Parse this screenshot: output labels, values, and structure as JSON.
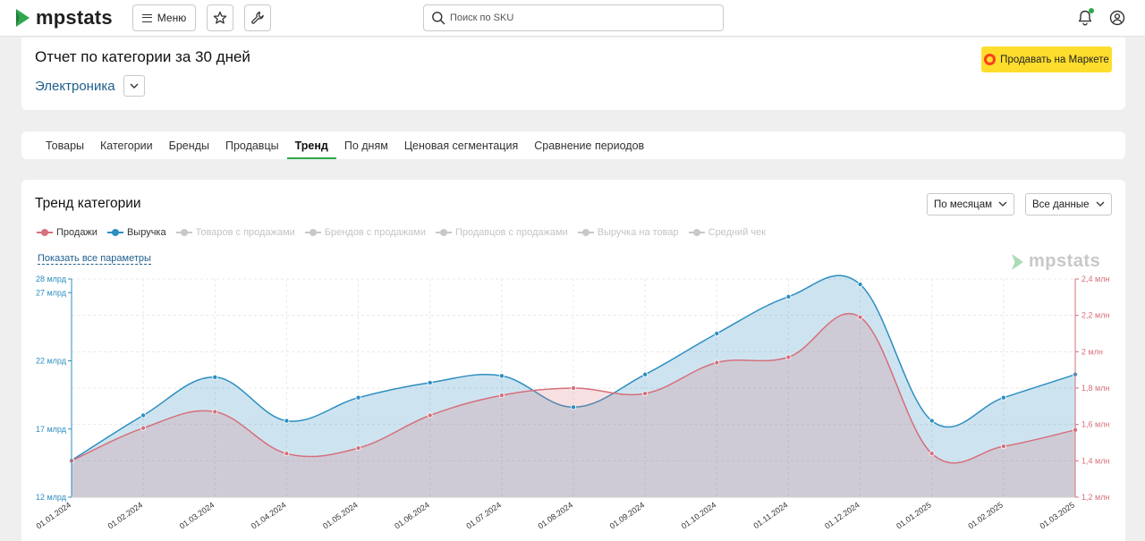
{
  "app": {
    "logo_text": "mpstats",
    "menu_label": "Меню",
    "search_placeholder": "Поиск по SKU"
  },
  "header": {
    "title": "Отчет по категории за 30 дней",
    "category": "Электроника",
    "sell_button": "Продавать на Маркете"
  },
  "tabs": [
    {
      "label": "Товары",
      "active": false
    },
    {
      "label": "Категории",
      "active": false
    },
    {
      "label": "Бренды",
      "active": false
    },
    {
      "label": "Продавцы",
      "active": false
    },
    {
      "label": "Тренд",
      "active": true
    },
    {
      "label": "По дням",
      "active": false
    },
    {
      "label": "Ценовая сегментация",
      "active": false
    },
    {
      "label": "Сравнение периодов",
      "active": false
    }
  ],
  "chart_card": {
    "title": "Тренд категории",
    "period_select": "По месяцам",
    "data_select": "Все данные",
    "show_all_link": "Показать все параметры",
    "watermark": "mpstats",
    "legend": [
      {
        "label": "Продажи",
        "active": true,
        "color": "#d5707c"
      },
      {
        "label": "Выручка",
        "active": true,
        "color": "#2d8ec0"
      },
      {
        "label": "Товаров с продажами",
        "active": false,
        "color": "#c8c8c8"
      },
      {
        "label": "Брендов с продажами",
        "active": false,
        "color": "#c8c8c8"
      },
      {
        "label": "Продавцов с продажами",
        "active": false,
        "color": "#c8c8c8"
      },
      {
        "label": "Выручка на товар",
        "active": false,
        "color": "#c8c8c8"
      },
      {
        "label": "Средний чек",
        "active": false,
        "color": "#c8c8c8"
      }
    ]
  },
  "chart_data": {
    "type": "area",
    "x": [
      "01.01.2024",
      "01.02.2024",
      "01.03.2024",
      "01.04.2024",
      "01.05.2024",
      "01.06.2024",
      "01.07.2024",
      "01.08.2024",
      "01.09.2024",
      "01.10.2024",
      "01.11.2024",
      "01.12.2024",
      "01.01.2025",
      "01.02.2025",
      "01.03.2025"
    ],
    "y_left": {
      "ylim": [
        12,
        28
      ],
      "ticks": [
        {
          "value": 12,
          "label": "12 млрд"
        },
        {
          "value": 17,
          "label": "17 млрд"
        },
        {
          "value": 22,
          "label": "22 млрд"
        },
        {
          "value": 27,
          "label": "27 млрд"
        },
        {
          "value": 28,
          "label": "28 млрд"
        }
      ]
    },
    "y_right": {
      "ylim": [
        1.2,
        2.4
      ],
      "ticks": [
        {
          "value": 1.2,
          "label": "1,2 млн"
        },
        {
          "value": 1.4,
          "label": "1,4 млн"
        },
        {
          "value": 1.6,
          "label": "1,6 млн"
        },
        {
          "value": 1.8,
          "label": "1,8 млн"
        },
        {
          "value": 2.0,
          "label": "2 млн"
        },
        {
          "value": 2.2,
          "label": "2,2 млн"
        },
        {
          "value": 2.4,
          "label": "2,4 млн"
        }
      ]
    },
    "series": [
      {
        "name": "Выручка",
        "axis": "left",
        "unit": "млрд",
        "color": "#2d8ec0",
        "values": [
          14.7,
          18.0,
          20.8,
          17.6,
          19.3,
          20.4,
          20.9,
          18.6,
          21.0,
          24.0,
          26.7,
          27.6,
          17.6,
          19.3,
          21.0
        ]
      },
      {
        "name": "Продажи",
        "axis": "right",
        "unit": "млн",
        "color": "#d5707c",
        "values": [
          1.4,
          1.58,
          1.67,
          1.44,
          1.47,
          1.65,
          1.76,
          1.8,
          1.77,
          1.94,
          1.97,
          2.19,
          1.44,
          1.48,
          1.57
        ]
      }
    ],
    "grid": true
  }
}
